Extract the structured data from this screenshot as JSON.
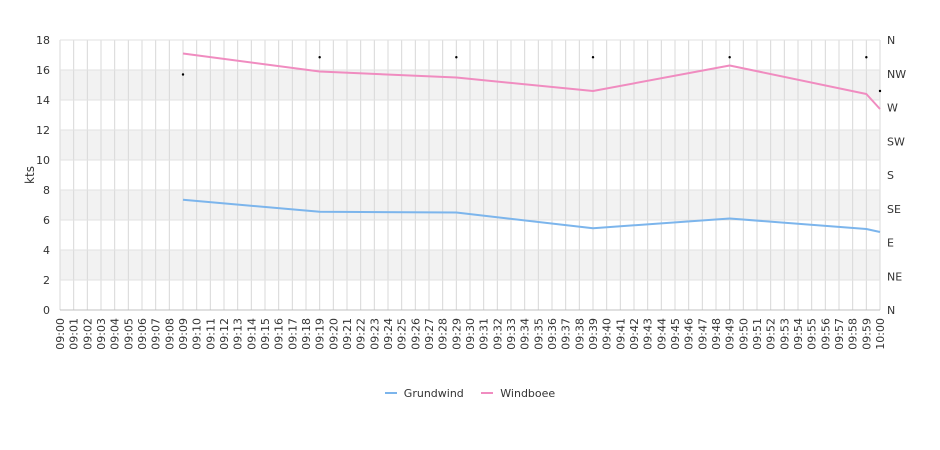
{
  "chart_data": {
    "type": "line",
    "ylabel": "kts",
    "ylim": [
      0,
      18
    ],
    "y_ticks": [
      0,
      2,
      4,
      6,
      8,
      10,
      12,
      14,
      16,
      18
    ],
    "right_axis_labels": [
      "N",
      "NE",
      "E",
      "SE",
      "S",
      "SW",
      "W",
      "NW",
      "N"
    ],
    "x_tick_labels": [
      "09:00",
      "09:01",
      "09:02",
      "09:03",
      "09:04",
      "09:05",
      "09:06",
      "09:07",
      "09:08",
      "09:09",
      "09:10",
      "09:11",
      "09:12",
      "09:13",
      "09:14",
      "09:15",
      "09:16",
      "09:17",
      "09:18",
      "09:19",
      "09:20",
      "09:21",
      "09:22",
      "09:23",
      "09:24",
      "09:25",
      "09:26",
      "09:27",
      "09:28",
      "09:29",
      "09:30",
      "09:31",
      "09:32",
      "09:33",
      "09:34",
      "09:35",
      "09:36",
      "09:37",
      "09:38",
      "09:39",
      "09:40",
      "09:41",
      "09:42",
      "09:43",
      "09:44",
      "09:45",
      "09:46",
      "09:47",
      "09:48",
      "09:49",
      "09:50",
      "09:51",
      "09:52",
      "09:53",
      "09:54",
      "09:55",
      "09:56",
      "09:57",
      "09:58",
      "09:59",
      "10:00"
    ],
    "grid": true,
    "alternating_bands": true,
    "legend_position": "bottom-center",
    "series": [
      {
        "name": "Grundwind",
        "color": "#7cb5ec",
        "x": [
          "09:09",
          "09:19",
          "09:29",
          "09:39",
          "09:49",
          "09:59",
          "10:00"
        ],
        "values": [
          7.35,
          6.55,
          6.5,
          5.45,
          6.1,
          5.4,
          5.2
        ]
      },
      {
        "name": "Windboee",
        "color": "#f08cc0",
        "x": [
          "09:09",
          "09:19",
          "09:29",
          "09:39",
          "09:49",
          "09:59",
          "10:00"
        ],
        "values": [
          17.1,
          15.9,
          15.5,
          14.6,
          16.3,
          14.4,
          13.4
        ]
      }
    ],
    "direction_markers": {
      "x": [
        "09:09",
        "09:19",
        "09:29",
        "09:39",
        "09:49",
        "09:59",
        "10:00"
      ],
      "values": [
        15.7,
        16.85,
        16.85,
        16.85,
        16.85,
        16.85,
        14.6
      ]
    }
  }
}
